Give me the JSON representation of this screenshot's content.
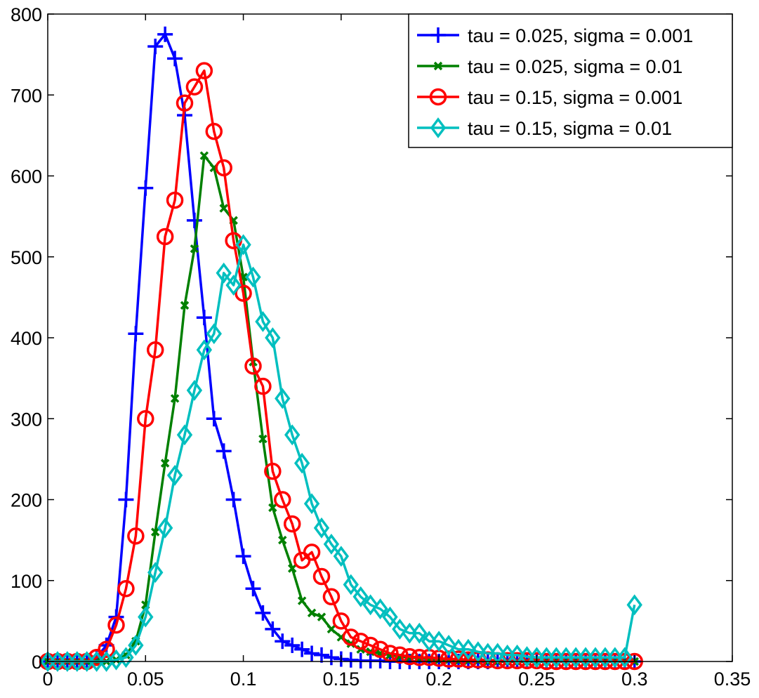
{
  "chart_data": {
    "type": "line",
    "title": "",
    "xlabel": "",
    "ylabel": "",
    "xlim": [
      0,
      0.35
    ],
    "ylim": [
      0,
      800
    ],
    "xticks": [
      0,
      0.05,
      0.1,
      0.15,
      0.2,
      0.25,
      0.3,
      0.35
    ],
    "xtick_labels": [
      "0",
      "0.05",
      "0.1",
      "0.15",
      "0.2",
      "0.25",
      "0.3",
      "0.35"
    ],
    "yticks": [
      0,
      100,
      200,
      300,
      400,
      500,
      600,
      700,
      800
    ],
    "ytick_labels": [
      "0",
      "100",
      "200",
      "300",
      "400",
      "500",
      "600",
      "700",
      "800"
    ],
    "grid": false,
    "legend_position": "top-right",
    "series": [
      {
        "name": "tau = 0.025, sigma = 0.001",
        "color": "#0000ff",
        "marker": "plus",
        "x": [
          0,
          0.005,
          0.01,
          0.015,
          0.02,
          0.025,
          0.03,
          0.035,
          0.04,
          0.045,
          0.05,
          0.055,
          0.06,
          0.065,
          0.07,
          0.075,
          0.08,
          0.085,
          0.09,
          0.095,
          0.1,
          0.105,
          0.11,
          0.115,
          0.12,
          0.125,
          0.13,
          0.135,
          0.14,
          0.145,
          0.15,
          0.155,
          0.16,
          0.165,
          0.17,
          0.175,
          0.18,
          0.185,
          0.19,
          0.195,
          0.2,
          0.205,
          0.21,
          0.215,
          0.22,
          0.225,
          0.23,
          0.235,
          0.24,
          0.245,
          0.25,
          0.255,
          0.26,
          0.265,
          0.27,
          0.275,
          0.28,
          0.285,
          0.29,
          0.295,
          0.3
        ],
        "y": [
          0,
          0,
          0,
          0,
          0,
          5,
          20,
          55,
          200,
          405,
          585,
          760,
          775,
          745,
          675,
          545,
          425,
          300,
          260,
          200,
          130,
          90,
          60,
          40,
          25,
          20,
          15,
          10,
          8,
          5,
          3,
          2,
          1,
          1,
          1,
          0,
          0,
          0,
          0,
          0,
          0,
          0,
          0,
          0,
          0,
          0,
          0,
          0,
          0,
          0,
          0,
          0,
          0,
          0,
          0,
          0,
          0,
          0,
          0,
          0,
          0
        ]
      },
      {
        "name": "tau = 0.025, sigma = 0.01",
        "color": "#008000",
        "marker": "x",
        "x": [
          0,
          0.005,
          0.01,
          0.015,
          0.02,
          0.025,
          0.03,
          0.035,
          0.04,
          0.045,
          0.05,
          0.055,
          0.06,
          0.065,
          0.07,
          0.075,
          0.08,
          0.085,
          0.09,
          0.095,
          0.1,
          0.105,
          0.11,
          0.115,
          0.12,
          0.125,
          0.13,
          0.135,
          0.14,
          0.145,
          0.15,
          0.155,
          0.16,
          0.165,
          0.17,
          0.175,
          0.18,
          0.185,
          0.19,
          0.195,
          0.2,
          0.205,
          0.21,
          0.215,
          0.22,
          0.225,
          0.23,
          0.235,
          0.24,
          0.245,
          0.25,
          0.255,
          0.26,
          0.265,
          0.27,
          0.275,
          0.28,
          0.285,
          0.29,
          0.295,
          0.3
        ],
        "y": [
          0,
          0,
          0,
          0,
          0,
          0,
          0,
          2,
          8,
          25,
          70,
          160,
          245,
          325,
          440,
          510,
          625,
          610,
          560,
          545,
          475,
          370,
          275,
          190,
          150,
          115,
          75,
          60,
          55,
          40,
          30,
          22,
          15,
          12,
          10,
          8,
          6,
          5,
          4,
          3,
          2,
          2,
          1,
          1,
          1,
          0,
          0,
          0,
          0,
          0,
          0,
          0,
          0,
          0,
          0,
          0,
          0,
          0,
          0,
          0,
          0
        ]
      },
      {
        "name": "tau = 0.15, sigma = 0.001",
        "color": "#ff0000",
        "marker": "circle",
        "x": [
          0,
          0.005,
          0.01,
          0.015,
          0.02,
          0.025,
          0.03,
          0.035,
          0.04,
          0.045,
          0.05,
          0.055,
          0.06,
          0.065,
          0.07,
          0.075,
          0.08,
          0.085,
          0.09,
          0.095,
          0.1,
          0.105,
          0.11,
          0.115,
          0.12,
          0.125,
          0.13,
          0.135,
          0.14,
          0.145,
          0.15,
          0.155,
          0.16,
          0.165,
          0.17,
          0.175,
          0.18,
          0.185,
          0.19,
          0.195,
          0.2,
          0.205,
          0.21,
          0.215,
          0.22,
          0.225,
          0.23,
          0.235,
          0.24,
          0.245,
          0.25,
          0.255,
          0.26,
          0.265,
          0.27,
          0.275,
          0.28,
          0.285,
          0.29,
          0.295,
          0.3
        ],
        "y": [
          0,
          0,
          0,
          0,
          0,
          5,
          15,
          45,
          90,
          155,
          300,
          385,
          525,
          570,
          690,
          710,
          730,
          655,
          610,
          520,
          455,
          365,
          340,
          235,
          200,
          170,
          125,
          135,
          105,
          80,
          50,
          30,
          25,
          20,
          15,
          10,
          8,
          6,
          5,
          5,
          4,
          3,
          3,
          2,
          2,
          2,
          1,
          1,
          1,
          1,
          1,
          0,
          0,
          0,
          0,
          0,
          0,
          0,
          0,
          0,
          0
        ]
      },
      {
        "name": "tau = 0.15, sigma = 0.01",
        "color": "#00bfbf",
        "marker": "diamond",
        "x": [
          0,
          0.005,
          0.01,
          0.015,
          0.02,
          0.025,
          0.03,
          0.035,
          0.04,
          0.045,
          0.05,
          0.055,
          0.06,
          0.065,
          0.07,
          0.075,
          0.08,
          0.085,
          0.09,
          0.095,
          0.1,
          0.105,
          0.11,
          0.115,
          0.12,
          0.125,
          0.13,
          0.135,
          0.14,
          0.145,
          0.15,
          0.155,
          0.16,
          0.165,
          0.17,
          0.175,
          0.18,
          0.185,
          0.19,
          0.195,
          0.2,
          0.205,
          0.21,
          0.215,
          0.22,
          0.225,
          0.23,
          0.235,
          0.24,
          0.245,
          0.25,
          0.255,
          0.26,
          0.265,
          0.27,
          0.275,
          0.28,
          0.285,
          0.29,
          0.295,
          0.3
        ],
        "y": [
          0,
          0,
          0,
          0,
          0,
          0,
          0,
          2,
          5,
          20,
          55,
          110,
          165,
          230,
          280,
          335,
          385,
          405,
          480,
          465,
          515,
          475,
          420,
          400,
          325,
          280,
          245,
          195,
          165,
          145,
          130,
          95,
          80,
          70,
          65,
          55,
          40,
          35,
          35,
          25,
          25,
          20,
          15,
          15,
          12,
          10,
          10,
          8,
          8,
          6,
          5,
          5,
          5,
          5,
          5,
          5,
          5,
          5,
          5,
          5,
          70
        ]
      }
    ]
  }
}
